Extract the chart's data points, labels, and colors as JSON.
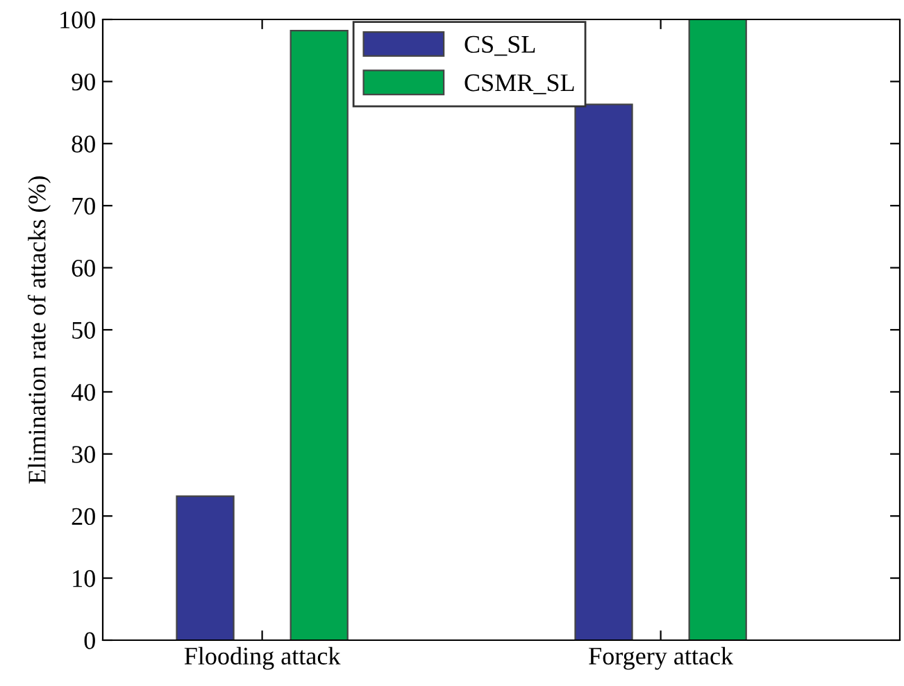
{
  "chart_data": {
    "type": "bar",
    "ylabel": "Elimination rate of attacks (%)",
    "categories": [
      "Flooding attack",
      "Forgery attack"
    ],
    "series": [
      {
        "name": "CS_SL",
        "color": "#333894",
        "values": [
          23.2,
          86.3
        ]
      },
      {
        "name": "CSMR_SL",
        "color": "#00a54f",
        "values": [
          98.2,
          100
        ]
      }
    ],
    "ylim": [
      0,
      100
    ],
    "yticks": [
      0,
      10,
      20,
      30,
      40,
      50,
      60,
      70,
      80,
      90,
      100
    ],
    "grid": false,
    "legend": "top"
  }
}
